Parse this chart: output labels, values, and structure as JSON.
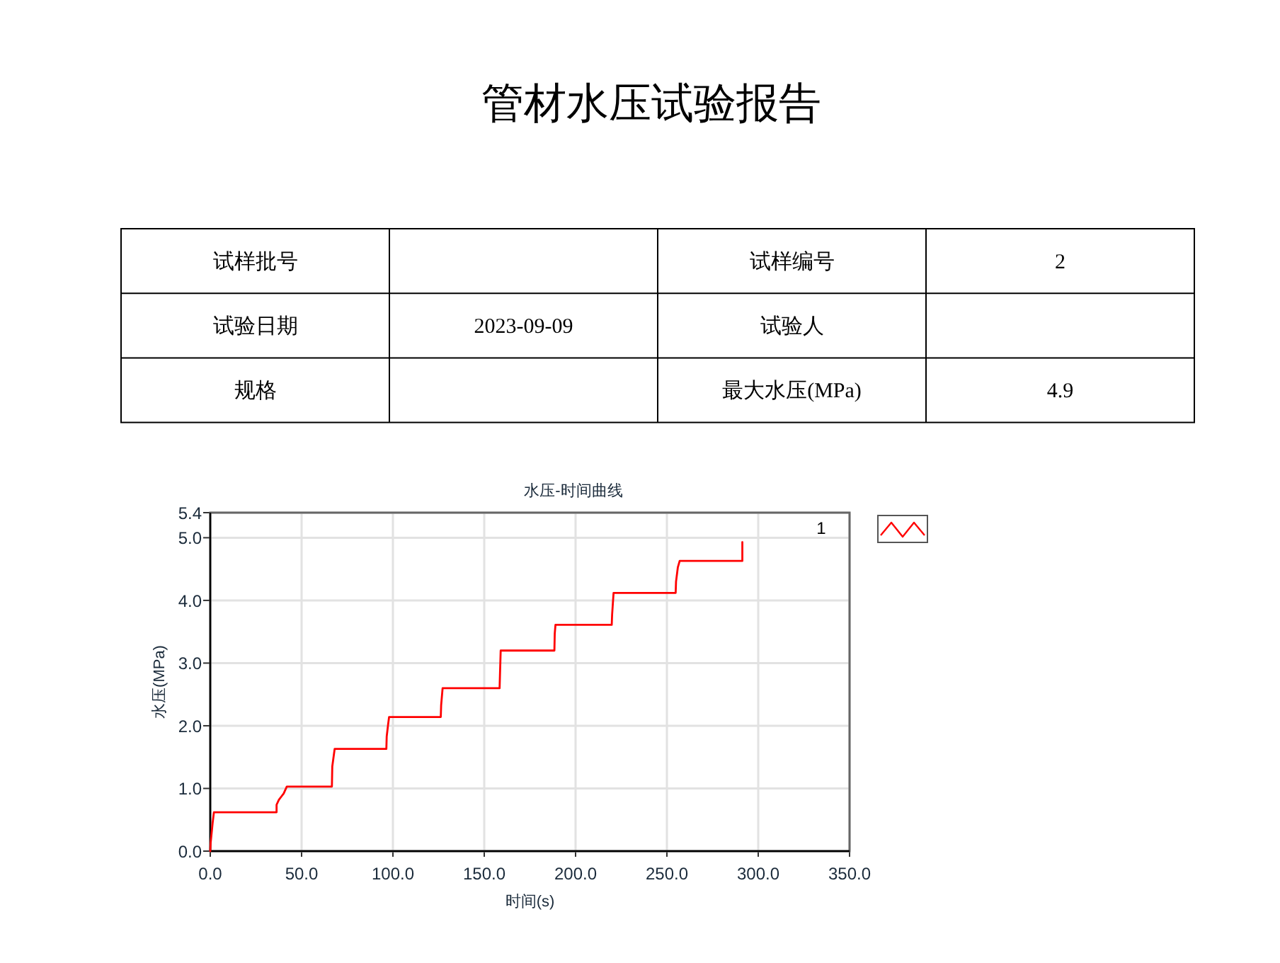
{
  "chart_data": [
    {
      "type": "other",
      "title": "管材水压试验报告",
      "annotations": [
        "试样批号",
        null,
        "试样编号",
        "2",
        "试验日期",
        "2023-09-09",
        "试验人",
        null,
        "规格",
        null,
        "最大水压(MPa)",
        "4.9"
      ]
    },
    {
      "type": "line",
      "title": "水压-时间曲线",
      "xlabel": "时间(s)",
      "ylabel": "水压(MPa)",
      "series": [
        {
          "name": "1",
          "color": "#ff0000",
          "x": [
            0,
            0.2,
            1.3,
            2.0,
            36.3,
            36.3,
            37.6,
            38.9,
            40.2,
            41.9,
            66.6,
            66.8,
            68.1,
            96.4,
            96.6,
            97.4,
            97.9,
            126.2,
            126.4,
            127.2,
            158.4,
            158.6,
            159.0,
            188.4,
            188.6,
            189.0,
            219.8,
            220.0,
            220.8,
            254.8,
            255.0,
            256.0,
            257.0,
            291.3,
            291.3
          ],
          "values": [
            0,
            0.13,
            0.45,
            0.62,
            0.62,
            0.74,
            0.82,
            0.87,
            0.92,
            1.03,
            1.03,
            1.35,
            1.63,
            1.63,
            1.83,
            2.03,
            2.14,
            2.14,
            2.33,
            2.6,
            2.6,
            2.8,
            3.2,
            3.2,
            3.47,
            3.61,
            3.61,
            3.77,
            4.12,
            4.12,
            4.3,
            4.53,
            4.63,
            4.63,
            4.93
          ]
        }
      ],
      "xlim": [
        0,
        350
      ],
      "ylim": [
        0,
        5.4
      ],
      "xticks": [
        {
          "value": 0,
          "label": "0.0"
        },
        {
          "value": 50,
          "label": "50.0"
        },
        {
          "value": 100,
          "label": "100.0"
        },
        {
          "value": 150,
          "label": "150.0"
        },
        {
          "value": 200,
          "label": "200.0"
        },
        {
          "value": 250,
          "label": "250.0"
        },
        {
          "value": 300,
          "label": "300.0"
        },
        {
          "value": 350,
          "label": "350.0"
        }
      ],
      "yticks": [
        {
          "value": 0,
          "label": "0.0"
        },
        {
          "value": 1,
          "label": "1.0"
        },
        {
          "value": 2,
          "label": "2.0"
        },
        {
          "value": 3,
          "label": "3.0"
        },
        {
          "value": 4,
          "label": "4.0"
        },
        {
          "value": 5,
          "label": "5.0"
        },
        {
          "value": 5.4,
          "label": "5.4"
        }
      ],
      "grid": true,
      "legend": "top right"
    }
  ]
}
